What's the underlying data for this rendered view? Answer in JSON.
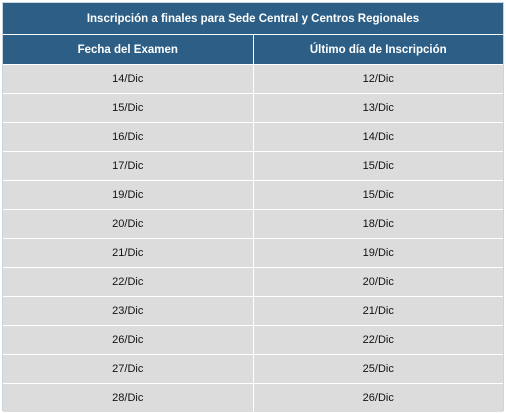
{
  "table": {
    "title": "Inscripción a finales para Sede Central y Centros Regionales",
    "columns": [
      "Fecha del Examen",
      "Último día de Inscripción"
    ],
    "rows": [
      [
        "14/Dic",
        "12/Dic"
      ],
      [
        "15/Dic",
        "13/Dic"
      ],
      [
        "16/Dic",
        "14/Dic"
      ],
      [
        "17/Dic",
        "15/Dic"
      ],
      [
        "19/Dic",
        "15/Dic"
      ],
      [
        "20/Dic",
        "18/Dic"
      ],
      [
        "21/Dic",
        "19/Dic"
      ],
      [
        "22/Dic",
        "20/Dic"
      ],
      [
        "23/Dic",
        "21/Dic"
      ],
      [
        "26/Dic",
        "22/Dic"
      ],
      [
        "27/Dic",
        "25/Dic"
      ],
      [
        "28/Dic",
        "26/Dic"
      ]
    ]
  },
  "colors": {
    "header_bg": "#2d5f86",
    "header_text": "#ffffff",
    "row_bg": "#dcdcdc",
    "row_text": "#111111"
  }
}
